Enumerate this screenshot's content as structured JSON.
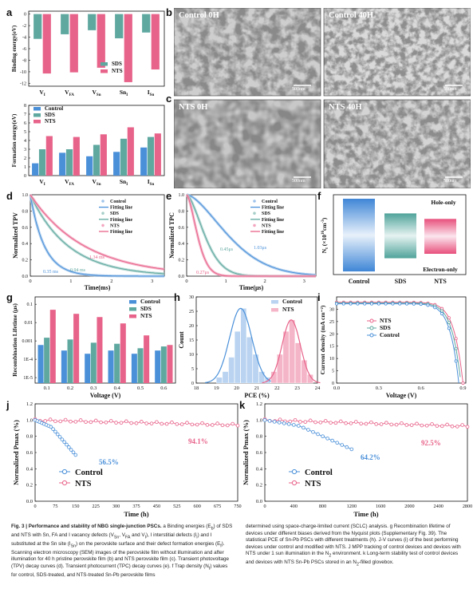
{
  "panel_letters": [
    "a",
    "b",
    "c",
    "d",
    "e",
    "f",
    "g",
    "h",
    "i",
    "j",
    "k"
  ],
  "sem": {
    "b_left": "Control 0H",
    "b_right": "Control 40H",
    "c_left": "NTS 0H",
    "c_right": "NTS 40H",
    "scale": "500nm"
  },
  "colors": {
    "control": "#4a90d9",
    "sds": "#5fa8a0",
    "nts": "#e8638a",
    "pale_blue": "#9ec3ea",
    "pale_pink": "#f3a6bf"
  },
  "chart_data": [
    {
      "id": "a-binding",
      "type": "bar",
      "ylabel": "Binding energy(eV)",
      "categories": [
        "V_I",
        "V_FA",
        "V_Sn",
        "Sn_I",
        "I_Sn"
      ],
      "category_labels": {
        "main": [
          "V",
          "V",
          "V",
          "Sn",
          "I"
        ],
        "sub": [
          "I",
          "FA",
          "Sn",
          "I",
          "Sn"
        ]
      },
      "yticks": [
        0,
        -2,
        -4,
        -6,
        -8,
        -10,
        -12
      ],
      "ylim": [
        -12.5,
        0.5
      ],
      "series": [
        {
          "name": "SDS",
          "values": [
            -4.3,
            -3.5,
            -2.8,
            -4.2,
            -3.2
          ]
        },
        {
          "name": "NTS",
          "values": [
            -10.3,
            -10.1,
            -9.3,
            -11.8,
            -9.6
          ]
        }
      ]
    },
    {
      "id": "a-formation",
      "type": "bar",
      "ylabel": "Formation energy(eV)",
      "categories": [
        "V_I",
        "V_FA",
        "V_Sn",
        "Sn_I",
        "I_Sn"
      ],
      "yticks": [
        0,
        1,
        2,
        3,
        4,
        5,
        6,
        7,
        8
      ],
      "ylim": [
        0,
        8
      ],
      "series": [
        {
          "name": "Control",
          "values": [
            1.4,
            2.6,
            2.2,
            2.7,
            3.2
          ]
        },
        {
          "name": "SDS",
          "values": [
            3.0,
            3.0,
            3.5,
            4.2,
            4.4
          ]
        },
        {
          "name": "NTS",
          "values": [
            4.5,
            4.4,
            4.7,
            5.5,
            4.8
          ]
        }
      ]
    },
    {
      "id": "d-tpv",
      "type": "line",
      "xlabel": "Time(ms)",
      "ylabel": "Normalized TPV",
      "xticks": [
        0,
        1,
        2,
        3
      ],
      "yticks": [
        0.0,
        0.2,
        0.4,
        0.6,
        0.8,
        1.0
      ],
      "xlim": [
        0,
        3.3
      ],
      "ylim": [
        0,
        1.0
      ],
      "series": [
        {
          "name": "Control",
          "fit": "Fitting line",
          "tau": 0.35
        },
        {
          "name": "SDS",
          "fit": "Fitting line",
          "tau": 0.94
        },
        {
          "name": "NTS",
          "fit": "Fitting line",
          "tau": 1.34
        }
      ],
      "annotations": [
        "0.35 ms",
        "0.94 ms",
        "1.34 ms"
      ]
    },
    {
      "id": "e-tpc",
      "type": "line",
      "xlabel": "Time(μs)",
      "ylabel": "Normalized TPC",
      "xticks": [
        0,
        1,
        2,
        3
      ],
      "yticks": [
        0.0,
        0.2,
        0.4,
        0.6,
        0.8,
        1.0
      ],
      "xlim": [
        0,
        3.3
      ],
      "ylim": [
        0,
        1.0
      ],
      "series": [
        {
          "name": "Control",
          "fit": "Fitting line",
          "tau": 1.03
        },
        {
          "name": "SDS",
          "fit": "Fitting line",
          "tau": 0.45
        },
        {
          "name": "NTS",
          "fit": "Fitting line",
          "tau": 0.27
        }
      ],
      "annotations": [
        "1.03μs",
        "0.45μs",
        "0.27μs"
      ]
    },
    {
      "id": "f-trap",
      "type": "bar",
      "ylabel": "N_t (×10^16 cm^-3)",
      "ylabel_parts": {
        "N": "N",
        "t": "t",
        "unit": "(×10",
        "exp": "16",
        "cm": "cm",
        "neg": "-3",
        ")": ")"
      },
      "categories": [
        "Control",
        "SDS",
        "NTS"
      ],
      "top_label": "Hole-only",
      "bottom_label": "Electron-only",
      "series": [
        {
          "name": "Hole-only",
          "values": [
            1.0,
            0.6,
            0.45
          ]
        },
        {
          "name": "Electron-only",
          "values": [
            -0.98,
            -0.62,
            -0.5
          ]
        }
      ]
    },
    {
      "id": "g-recomb",
      "type": "bar",
      "xlabel": "Voltage (V)",
      "ylabel": "Recombination Lifetime (μs)",
      "categories": [
        "0.1",
        "0.2",
        "0.3",
        "0.4",
        "0.5",
        "0.6"
      ],
      "yscale": "log",
      "yticks": [
        "1E-5",
        "1E-4",
        "0.001",
        "0.01",
        "0.1"
      ],
      "series": [
        {
          "name": "Control",
          "values": [
            0.0006,
            0.0003,
            0.0002,
            0.0003,
            0.0002,
            0.0003
          ]
        },
        {
          "name": "SDS",
          "values": [
            0.0015,
            0.0012,
            0.0008,
            0.0007,
            0.0004,
            0.0005
          ]
        },
        {
          "name": "NTS",
          "values": [
            0.05,
            0.03,
            0.02,
            0.009,
            0.002,
            0.0006
          ]
        }
      ]
    },
    {
      "id": "h-pce",
      "type": "histogram",
      "xlabel": "PCE (%)",
      "ylabel": "Count",
      "xticks": [
        18,
        19,
        20,
        21,
        22,
        23,
        24
      ],
      "yticks": [
        0,
        5,
        10,
        15,
        20,
        25,
        30
      ],
      "xlim": [
        18,
        24
      ],
      "ylim": [
        0,
        30
      ],
      "series": [
        {
          "name": "Control",
          "bins": [
            19.0,
            19.3,
            19.6,
            19.9,
            20.2,
            20.5,
            20.8,
            21.1,
            21.4
          ],
          "counts": [
            2,
            4,
            9,
            18,
            26,
            16,
            10,
            4,
            2
          ],
          "mean": 20.2,
          "sigma": 0.55
        },
        {
          "name": "NTS",
          "bins": [
            21.7,
            22.0,
            22.3,
            22.6,
            22.9,
            23.2,
            23.5
          ],
          "counts": [
            4,
            10,
            18,
            22,
            14,
            8,
            3
          ],
          "mean": 22.7,
          "sigma": 0.45
        }
      ]
    },
    {
      "id": "i-jv",
      "type": "line",
      "xlabel": "Voltage (V)",
      "ylabel": "Current density (mA cm⁻²)",
      "xticks": [
        "0.0",
        "0.3",
        "0.6",
        "0.9"
      ],
      "yticks": [
        0,
        5,
        10,
        15,
        20,
        25,
        30
      ],
      "xlim": [
        0,
        0.92
      ],
      "ylim": [
        0,
        35
      ],
      "series": [
        {
          "name": "NTS",
          "jsc": 32.8,
          "voc": 0.9
        },
        {
          "name": "SDS",
          "jsc": 32.5,
          "voc": 0.885
        },
        {
          "name": "Control",
          "jsc": 32.2,
          "voc": 0.87
        }
      ]
    },
    {
      "id": "j-mpp",
      "type": "line",
      "xlabel": "Time (h)",
      "ylabel": "Normalized Pmax (%)",
      "xticks": [
        0,
        75,
        150,
        225,
        300,
        375,
        450,
        525,
        600,
        675,
        750
      ],
      "yticks": [
        "0.0",
        "0.2",
        "0.4",
        "0.6",
        "0.8",
        "1.0",
        "1.2"
      ],
      "xlim": [
        0,
        750
      ],
      "ylim": [
        0,
        1.2
      ],
      "series": [
        {
          "name": "Control",
          "final": "56.5%",
          "end_x": 150
        },
        {
          "name": "NTS",
          "final": "94.1%",
          "end_x": 750
        }
      ],
      "annotations": [
        "56.5%",
        "94.1%"
      ]
    },
    {
      "id": "k-storage",
      "type": "line",
      "xlabel": "Time (h)",
      "ylabel": "Normalized Pmax (%)",
      "xticks": [
        0,
        400,
        800,
        1200,
        1600,
        2000,
        2400,
        2800
      ],
      "yticks": [
        "0.0",
        "0.2",
        "0.4",
        "0.6",
        "0.8",
        "1.0",
        "1.2"
      ],
      "xlim": [
        0,
        2800
      ],
      "ylim": [
        0,
        1.2
      ],
      "series": [
        {
          "name": "Control",
          "final": "64.2%",
          "end_x": 1200
        },
        {
          "name": "NTS",
          "final": "92.5%",
          "end_x": 2800
        }
      ],
      "annotations": [
        "64.2%",
        "92.5%"
      ]
    }
  ],
  "caption": {
    "figno": "Fig. 3 | Performance and stability of NBG single-junction PSCs.",
    "col1": [
      " a Binding energies (E",
      "b",
      ") of SDS and NTS with Sn, FA and I vacancy defects (V",
      "Sn",
      ", V",
      "FA",
      " and V",
      "I",
      "), I interstitial defects (I",
      "i",
      ") and I substituted at the Sn site (I",
      "Sn",
      ") on the perovskite surface and their defect formation energies (E",
      "f",
      "). Scanning electron microscopy (SEM) images of the perovskite film without illumination and after illumination for 40 h pristine perovskite film (b) and NTS perovskite film (c). Transient photovoltage (TPV) decay curves (d). Transient photocurrent (TPC) decay curves (e). f Trap density (N",
      "t",
      ") values for control, SDS-treated, and NTS-treated Sn-Pb perovskite films"
    ],
    "col2": [
      "determined using space-charge-limited current (SCLC) analysis. g Recombination lifetime of devices under different biases derived from the Nyquist plots (Supplementary Fig. 39). The statistical PCE of Sn-Pb PSCs with different treatments (h). J-V curves (i) of the best performing devices under control and modified with NTS. J MPP tracking of control devices and devices with NTS under 1 sun illumination in the N",
      "2",
      " environment. k Long-term stability test of control devices and devices with NTS Sn-Pb PSCs stored in an N",
      "2",
      "-filled glovebox."
    ]
  }
}
